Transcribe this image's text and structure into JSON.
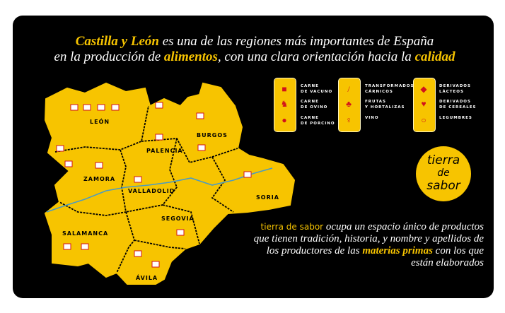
{
  "headline": {
    "line1_highlight": "Castilla y León",
    "line1_rest": " es una de las regiones más importantes de España",
    "line2_a": "en la producción de ",
    "line2_highlight1": "alimentos",
    "line2_b": ", con una clara orientación hacia la ",
    "line2_highlight2": "calidad"
  },
  "provinces": [
    "LEÓN",
    "PALENCIA",
    "BURGOS",
    "ZAMORA",
    "VALLADOLID",
    "SORIA",
    "SALAMANCA",
    "SEGOVIA",
    "ÁVILA"
  ],
  "legend": [
    {
      "label": "CARNE\nDE VACUNO",
      "icon": "cow-icon"
    },
    {
      "label": "CARNE\nDE OVINO",
      "icon": "sheep-icon"
    },
    {
      "label": "CARNE\nDE PORCINO",
      "icon": "pig-icon"
    },
    {
      "label": "TRANSFORMADOS\nCÁRNICOS",
      "icon": "sausage-icon"
    },
    {
      "label": "FRUTAS\nY HORTALIZAS",
      "icon": "cherry-icon"
    },
    {
      "label": "VINO",
      "icon": "wine-icon"
    },
    {
      "label": "DERIVADOS\nLÁCTEOS",
      "icon": "cheese-icon"
    },
    {
      "label": "DERIVADOS\nDE CEREALES",
      "icon": "grain-icon"
    },
    {
      "label": "LEGUMBRES",
      "icon": "beans-icon"
    }
  ],
  "logo": {
    "line1": "tierra",
    "line2": "de",
    "line3": "sabor"
  },
  "body": {
    "brand": "tierra de sabor",
    "text_a": " ocupa un espacio único de productos que tienen tradición, historia, y nombre y apellidos de los productores de las ",
    "highlight1": "materias primas",
    "text_b": " con los que están elaborados"
  },
  "colors": {
    "accent": "#f7c400",
    "background": "#000000",
    "icon_red": "#d1121b",
    "river": "#4a9bc4"
  }
}
